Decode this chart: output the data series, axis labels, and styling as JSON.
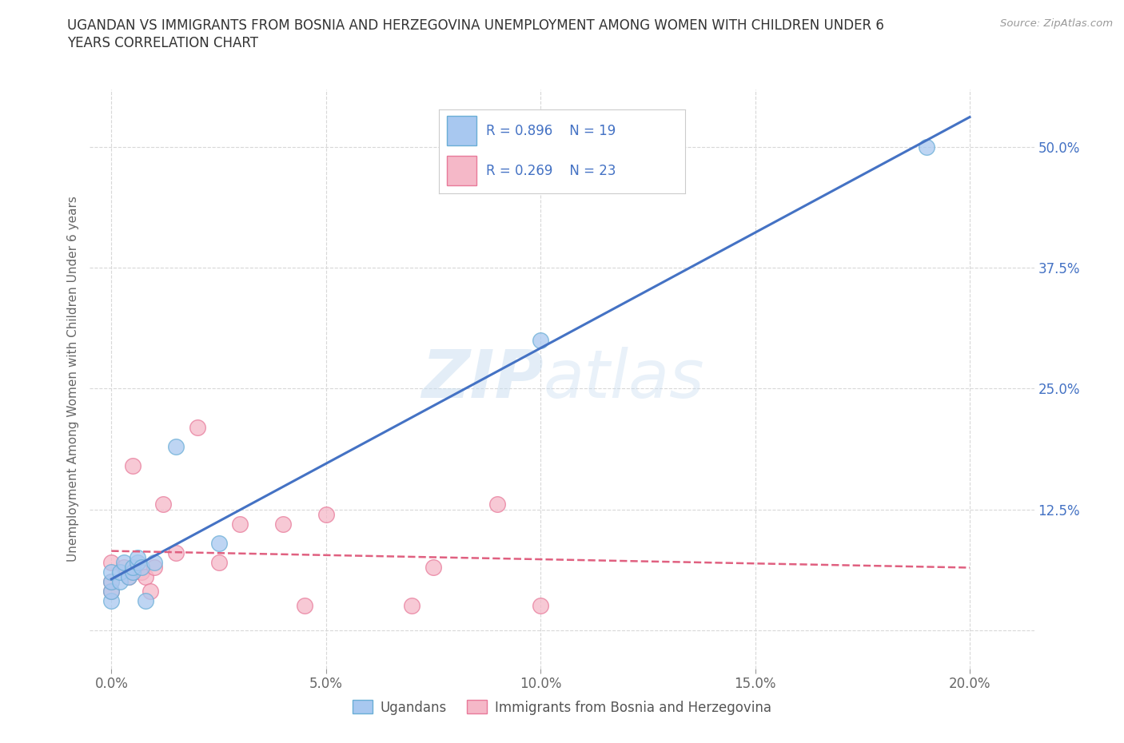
{
  "title_line1": "UGANDAN VS IMMIGRANTS FROM BOSNIA AND HERZEGOVINA UNEMPLOYMENT AMONG WOMEN WITH CHILDREN UNDER 6",
  "title_line2": "YEARS CORRELATION CHART",
  "source": "Source: ZipAtlas.com",
  "ylabel": "Unemployment Among Women with Children Under 6 years",
  "xlabel_ticks": [
    "0.0%",
    "5.0%",
    "10.0%",
    "15.0%",
    "20.0%"
  ],
  "xlabel_vals": [
    0.0,
    0.05,
    0.1,
    0.15,
    0.2
  ],
  "ylabel_ticks_right": [
    "50.0%",
    "37.5%",
    "25.0%",
    "12.5%",
    ""
  ],
  "ylabel_vals": [
    0.5,
    0.375,
    0.25,
    0.125,
    0.0
  ],
  "xlim": [
    -0.005,
    0.215
  ],
  "ylim": [
    -0.04,
    0.56
  ],
  "ugandan_x": [
    0.0,
    0.0,
    0.0,
    0.0,
    0.002,
    0.002,
    0.003,
    0.004,
    0.005,
    0.005,
    0.006,
    0.006,
    0.007,
    0.008,
    0.01,
    0.015,
    0.025,
    0.1,
    0.19
  ],
  "ugandan_y": [
    0.03,
    0.04,
    0.05,
    0.06,
    0.05,
    0.06,
    0.07,
    0.055,
    0.06,
    0.065,
    0.07,
    0.075,
    0.065,
    0.03,
    0.07,
    0.19,
    0.09,
    0.3,
    0.5
  ],
  "bosnia_x": [
    0.0,
    0.0,
    0.0,
    0.003,
    0.004,
    0.005,
    0.005,
    0.007,
    0.008,
    0.009,
    0.01,
    0.012,
    0.015,
    0.02,
    0.025,
    0.03,
    0.04,
    0.045,
    0.05,
    0.07,
    0.075,
    0.09,
    0.1
  ],
  "bosnia_y": [
    0.04,
    0.05,
    0.07,
    0.065,
    0.055,
    0.06,
    0.17,
    0.06,
    0.055,
    0.04,
    0.065,
    0.13,
    0.08,
    0.21,
    0.07,
    0.11,
    0.11,
    0.025,
    0.12,
    0.025,
    0.065,
    0.13,
    0.025
  ],
  "ugandan_color": "#a8c8f0",
  "ugandan_edge": "#6aaed6",
  "bosnia_color": "#f5b8c8",
  "bosnia_edge": "#e87a9a",
  "line_ugandan_color": "#4472c4",
  "line_bosnia_color": "#e06080",
  "legend_R_ugandan": "R = 0.896",
  "legend_N_ugandan": "N = 19",
  "legend_R_bosnia": "R = 0.269",
  "legend_N_bosnia": "N = 23",
  "legend_label_ugandan": "Ugandans",
  "legend_label_bosnia": "Immigrants from Bosnia and Herzegovina",
  "watermark_zip": "ZIP",
  "watermark_atlas": "atlas",
  "background_color": "#ffffff",
  "grid_color": "#d8d8d8"
}
